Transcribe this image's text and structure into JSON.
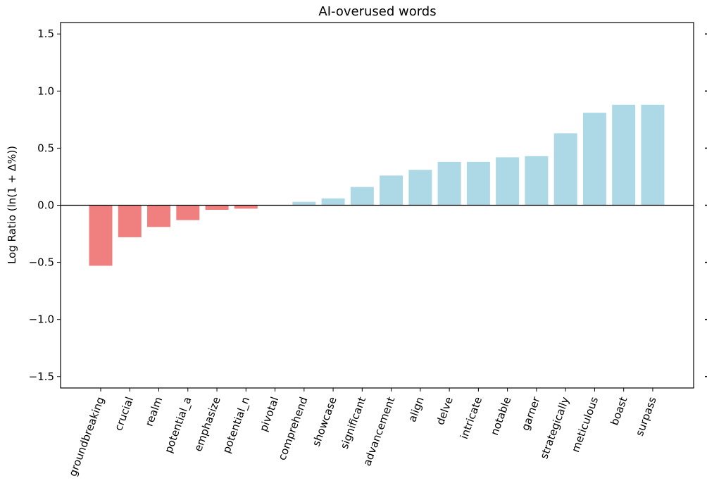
{
  "chart_data": {
    "type": "bar",
    "title": "AI-overused words",
    "xlabel": "",
    "ylabel": "Log Ratio (ln(1 + Δ%))",
    "ylim": [
      -1.6,
      1.6
    ],
    "yticks": [
      1.5,
      1.0,
      0.5,
      0.0,
      -0.5,
      -1.0,
      -1.5
    ],
    "ytick_labels": [
      "1.5",
      "1.0",
      "0.5",
      "0.0",
      "−0.5",
      "−1.0",
      "−1.5"
    ],
    "grid": false,
    "zero_line": true,
    "categories": [
      "groundbreaking",
      "crucial",
      "realm",
      "potential_a",
      "emphasize",
      "potential_n",
      "pivotal",
      "comprehend",
      "showcase",
      "significant",
      "advancement",
      "align",
      "delve",
      "intricate",
      "notable",
      "garner",
      "strategically",
      "meticulous",
      "boast",
      "surpass"
    ],
    "values": [
      -0.53,
      -0.28,
      -0.19,
      -0.13,
      -0.04,
      -0.03,
      0.0,
      0.03,
      0.06,
      0.16,
      0.26,
      0.31,
      0.38,
      0.38,
      0.42,
      0.43,
      0.63,
      0.81,
      0.88,
      0.88
    ],
    "colors": {
      "negative": "#f08080",
      "positive": "#add8e6",
      "axis": "#000000"
    }
  }
}
